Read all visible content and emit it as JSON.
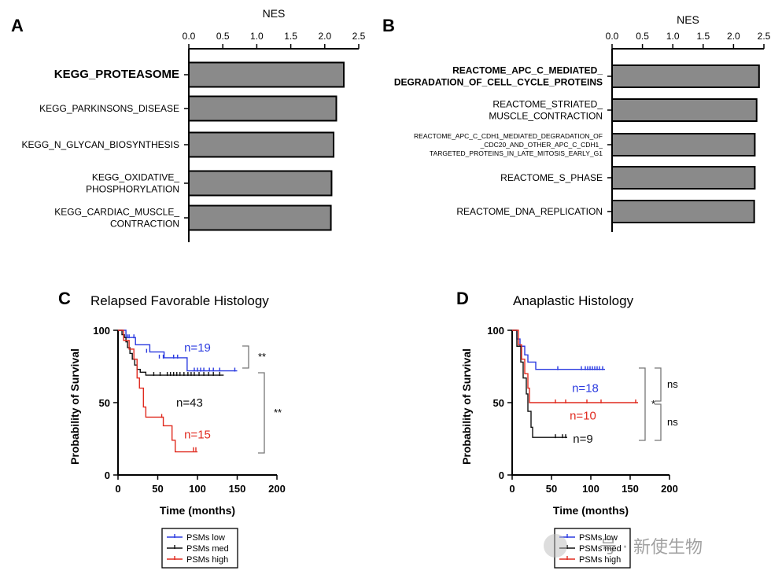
{
  "chart_data": [
    {
      "panel": "A",
      "type": "bar",
      "orientation": "horizontal",
      "xlabel": "NES",
      "xlim": [
        0,
        2.5
      ],
      "xticks": [
        "0.0",
        "0.5",
        "1.0",
        "1.5",
        "2.0",
        "2.5"
      ],
      "bar_color": "#8a8a8a",
      "categories": [
        {
          "lines": [
            "KEGG_PROTEASOME"
          ],
          "bold": true
        },
        {
          "lines": [
            "KEGG_PARKINSONS_DISEASE"
          ],
          "bold": false
        },
        {
          "lines": [
            "KEGG_N_GLYCAN_BIOSYNTHESIS"
          ],
          "bold": false
        },
        {
          "lines": [
            "KEGG_OXIDATIVE_",
            "PHOSPHORYLATION"
          ],
          "bold": false
        },
        {
          "lines": [
            "KEGG_CARDIAC_MUSCLE_",
            "CONTRACTION"
          ],
          "bold": false
        }
      ],
      "values": [
        2.28,
        2.17,
        2.13,
        2.1,
        2.09
      ]
    },
    {
      "panel": "B",
      "type": "bar",
      "orientation": "horizontal",
      "xlabel": "NES",
      "xlim": [
        0,
        2.5
      ],
      "xticks": [
        "0.0",
        "0.5",
        "1.0",
        "1.5",
        "2.0",
        "2.5"
      ],
      "bar_color": "#8a8a8a",
      "categories": [
        {
          "lines": [
            "REACTOME_APC_C_MEDIATED_",
            "DEGRADATION_OF_CELL_CYCLE_PROTEINS"
          ],
          "bold": true
        },
        {
          "lines": [
            "REACTOME_STRIATED_",
            "MUSCLE_CONTRACTION"
          ],
          "bold": false
        },
        {
          "lines": [
            "REACTOME_APC_C_CDH1_MEDIATED_DEGRADATION_OF",
            "_CDC20_AND_OTHER_APC_C_CDH1_",
            "TARGETED_PROTEINS_IN_LATE_MITOSIS_EARLY_G1"
          ],
          "bold": false,
          "small": true
        },
        {
          "lines": [
            "REACTOME_S_PHASE"
          ],
          "bold": false
        },
        {
          "lines": [
            "REACTOME_DNA_REPLICATION"
          ],
          "bold": false
        }
      ],
      "values": [
        2.42,
        2.38,
        2.35,
        2.35,
        2.34
      ]
    },
    {
      "panel": "C",
      "type": "line",
      "subtype": "kaplan-meier",
      "title": "Relapsed Favorable Histology",
      "xlabel": "Time (months)",
      "ylabel": "Probability of Survival",
      "xlim": [
        0,
        200
      ],
      "ylim": [
        0,
        100
      ],
      "xticks": [
        "0",
        "50",
        "100",
        "150",
        "200"
      ],
      "yticks": [
        "0",
        "50",
        "100"
      ],
      "series": [
        {
          "name": "PSMs low",
          "color": "#2b3be0",
          "n_label": "n=19",
          "n_at": [
            100,
            88
          ],
          "steps": [
            [
              0,
              100
            ],
            [
              10,
              95
            ],
            [
              22,
              90
            ],
            [
              40,
              85
            ],
            [
              58,
              81
            ],
            [
              87,
              72
            ],
            [
              150,
              72
            ]
          ],
          "censor": [
            [
              12,
              95
            ],
            [
              14,
              95
            ],
            [
              20,
              95
            ],
            [
              36,
              85
            ],
            [
              52,
              81
            ],
            [
              57,
              81
            ],
            [
              70,
              81
            ],
            [
              75,
              81
            ],
            [
              96,
              72
            ],
            [
              100,
              72
            ],
            [
              104,
              72
            ],
            [
              108,
              72
            ],
            [
              115,
              72
            ],
            [
              120,
              72
            ],
            [
              128,
              72
            ],
            [
              147,
              72
            ]
          ]
        },
        {
          "name": "PSMs med",
          "color": "#111111",
          "n_label": "n=43",
          "n_at": [
            90,
            50
          ],
          "steps": [
            [
              0,
              100
            ],
            [
              5,
              97
            ],
            [
              8,
              95
            ],
            [
              10,
              92
            ],
            [
              12,
              88
            ],
            [
              15,
              84
            ],
            [
              18,
              80
            ],
            [
              21,
              76
            ],
            [
              24,
              73
            ],
            [
              28,
              71
            ],
            [
              35,
              69
            ],
            [
              133,
              69
            ]
          ],
          "censor": [
            [
              45,
              69
            ],
            [
              53,
              69
            ],
            [
              62,
              69
            ],
            [
              66,
              69
            ],
            [
              70,
              69
            ],
            [
              74,
              69
            ],
            [
              78,
              69
            ],
            [
              83,
              69
            ],
            [
              88,
              69
            ],
            [
              92,
              69
            ],
            [
              96,
              69
            ],
            [
              102,
              69
            ],
            [
              108,
              69
            ],
            [
              114,
              69
            ],
            [
              120,
              69
            ],
            [
              128,
              69
            ]
          ]
        },
        {
          "name": "PSMs high",
          "color": "#e02a1f",
          "n_label": "n=15",
          "n_at": [
            100,
            28
          ],
          "steps": [
            [
              0,
              100
            ],
            [
              7,
              93
            ],
            [
              14,
              87
            ],
            [
              20,
              80
            ],
            [
              24,
              67
            ],
            [
              27,
              60
            ],
            [
              32,
              47
            ],
            [
              35,
              40
            ],
            [
              55,
              40
            ],
            [
              57,
              34
            ],
            [
              68,
              24
            ],
            [
              72,
              16
            ],
            [
              100,
              16
            ]
          ],
          "censor": [
            [
              55,
              40
            ],
            [
              95,
              17
            ],
            [
              98,
              17
            ]
          ]
        }
      ],
      "brackets": [
        {
          "from": "PSMs low",
          "to": "PSMs med",
          "label": "**"
        },
        {
          "from": "PSMs low",
          "to": "PSMs high",
          "label": "**"
        }
      ]
    },
    {
      "panel": "D",
      "type": "line",
      "subtype": "kaplan-meier",
      "title": "Anaplastic Histology",
      "xlabel": "Time (months)",
      "ylabel": "Probability of Survival",
      "xlim": [
        0,
        200
      ],
      "ylim": [
        0,
        100
      ],
      "xticks": [
        "0",
        "50",
        "100",
        "150",
        "200"
      ],
      "yticks": [
        "0",
        "50",
        "100"
      ],
      "series": [
        {
          "name": "PSMs low",
          "color": "#2b3be0",
          "n_label": "n=18",
          "n_at": [
            93,
            60
          ],
          "steps": [
            [
              0,
              100
            ],
            [
              6,
              94
            ],
            [
              10,
              89
            ],
            [
              16,
              83
            ],
            [
              20,
              78
            ],
            [
              30,
              73
            ],
            [
              118,
              73
            ]
          ],
          "censor": [
            [
              58,
              73
            ],
            [
              88,
              73
            ],
            [
              93,
              73
            ],
            [
              96,
              73
            ],
            [
              99,
              73
            ],
            [
              102,
              73
            ],
            [
              105,
              73
            ],
            [
              108,
              73
            ],
            [
              111,
              73
            ],
            [
              115,
              73
            ]
          ]
        },
        {
          "name": "PSMs med",
          "color": "#111111",
          "n_label": "n=9",
          "n_at": [
            90,
            25
          ],
          "steps": [
            [
              0,
              100
            ],
            [
              6,
              89
            ],
            [
              11,
              78
            ],
            [
              14,
              67
            ],
            [
              18,
              56
            ],
            [
              20,
              44
            ],
            [
              24,
              33
            ],
            [
              26,
              26
            ],
            [
              70,
              26
            ]
          ],
          "censor": [
            [
              55,
              26
            ],
            [
              64,
              26
            ],
            [
              68,
              26
            ]
          ]
        },
        {
          "name": "PSMs high",
          "color": "#e02a1f",
          "n_label": "n=10",
          "n_at": [
            90,
            41
          ],
          "steps": [
            [
              0,
              100
            ],
            [
              8,
              90
            ],
            [
              12,
              80
            ],
            [
              16,
              70
            ],
            [
              20,
              60
            ],
            [
              22,
              50
            ],
            [
              160,
              50
            ]
          ],
          "censor": [
            [
              55,
              50
            ],
            [
              68,
              50
            ],
            [
              95,
              50
            ],
            [
              113,
              50
            ],
            [
              157,
              50
            ]
          ]
        }
      ],
      "brackets": [
        {
          "from": "PSMs low",
          "to": "PSMs med",
          "label": "*"
        },
        {
          "from": "PSMs low",
          "to": "PSMs high",
          "label": "ns"
        },
        {
          "from": "PSMs high",
          "to": "PSMs med",
          "label": "ns"
        }
      ]
    }
  ],
  "watermark": {
    "text": "号 · 新使生物"
  }
}
